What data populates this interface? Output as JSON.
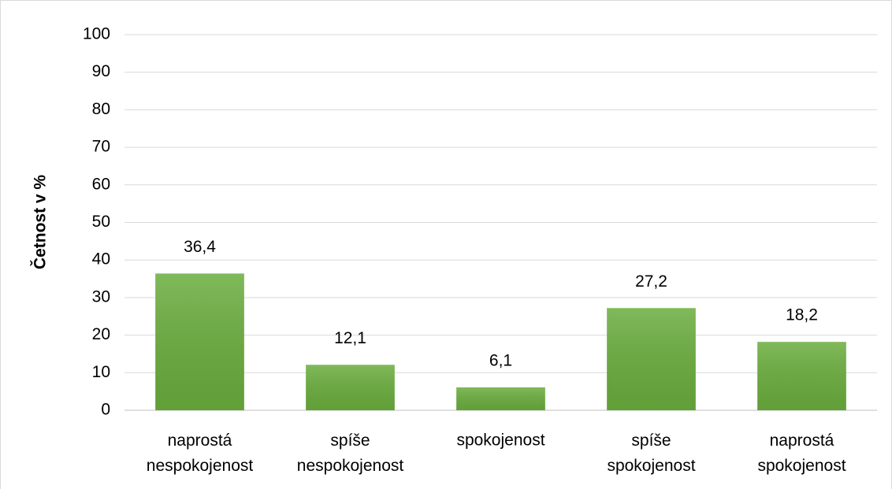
{
  "chart_data": {
    "type": "bar",
    "y_label": "Četnost v %",
    "categories": [
      "naprostá nespokojenost",
      "spíše nespokojenost",
      "spokojenost",
      "spíše spokojenost",
      "naprostá spokojenost"
    ],
    "values": [
      36.4,
      12.1,
      6.1,
      27.2,
      18.2
    ],
    "value_labels": [
      "36,4",
      "12,1",
      "6,1",
      "27,2",
      "18,2"
    ],
    "color": "#6aad3d",
    "ylim": [
      0,
      100
    ],
    "yticks": [
      0,
      10,
      20,
      30,
      40,
      50,
      60,
      70,
      80,
      90,
      100
    ],
    "grid": true
  }
}
